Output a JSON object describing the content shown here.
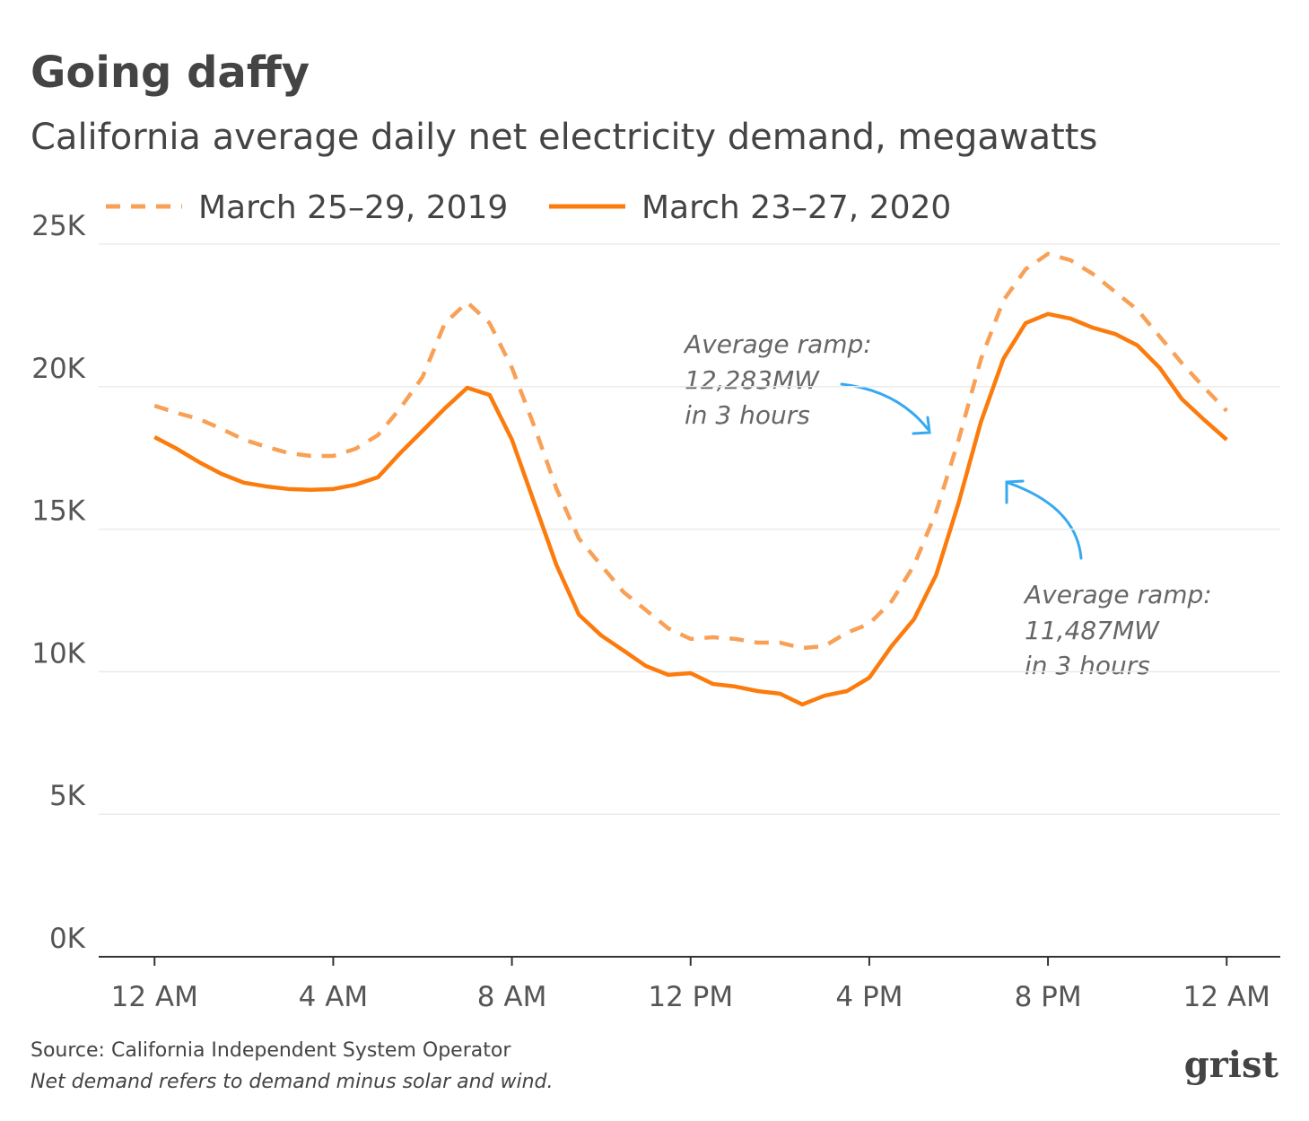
{
  "chart_data": {
    "type": "line",
    "title": "Going daffy",
    "subtitle": "California average daily net electricity demand, megawatts",
    "x": [
      0,
      0.5,
      1,
      1.5,
      2,
      2.5,
      3,
      3.5,
      4,
      4.5,
      5,
      5.5,
      6,
      6.5,
      7,
      7.5,
      8,
      8.5,
      9,
      9.5,
      10,
      10.5,
      11,
      11.5,
      12,
      12.5,
      13,
      13.5,
      14,
      14.5,
      15,
      15.5,
      16,
      16.5,
      17,
      17.5,
      18,
      18.5,
      19,
      19.5,
      20,
      20.5,
      21,
      21.5,
      22,
      22.5,
      23,
      23.5,
      24
    ],
    "series": [
      {
        "name": "March 25–29, 2019",
        "color": "#f9a057",
        "dashed": true,
        "values": [
          19330,
          19080,
          18860,
          18520,
          18140,
          17890,
          17670,
          17570,
          17570,
          17820,
          18300,
          19240,
          20340,
          22230,
          22960,
          22230,
          20660,
          18610,
          16410,
          14670,
          13730,
          12790,
          12160,
          11520,
          11150,
          11210,
          11150,
          11020,
          11020,
          10830,
          10900,
          11370,
          11680,
          12470,
          13730,
          15620,
          18140,
          20970,
          23020,
          24120,
          24660,
          24440,
          23960,
          23330,
          22700,
          21760,
          20820,
          19960,
          19150
        ]
      },
      {
        "name": "March 23–27, 2020",
        "color": "#fc7b0d",
        "dashed": false,
        "values": [
          18230,
          17820,
          17350,
          16940,
          16630,
          16500,
          16410,
          16380,
          16410,
          16560,
          16820,
          17670,
          18450,
          19240,
          19960,
          19710,
          18140,
          15930,
          13730,
          12000,
          11270,
          10740,
          10200,
          9890,
          9950,
          9570,
          9480,
          9320,
          9230,
          8850,
          9160,
          9320,
          9790,
          10900,
          11840,
          13410,
          15930,
          18770,
          20970,
          22230,
          22550,
          22390,
          22070,
          21850,
          21450,
          20660,
          19560,
          18830,
          18140
        ]
      }
    ],
    "xlim": [
      -1.25,
      25.2
    ],
    "xticks": [
      {
        "value": 0,
        "label": "12 AM"
      },
      {
        "value": 4,
        "label": "4 AM"
      },
      {
        "value": 8,
        "label": "8 AM"
      },
      {
        "value": 12,
        "label": "12 PM"
      },
      {
        "value": 16,
        "label": "4 PM"
      },
      {
        "value": 20,
        "label": "8 PM"
      },
      {
        "value": 24,
        "label": "12 AM"
      }
    ],
    "ylim": [
      0,
      25000
    ],
    "yticks": [
      {
        "value": 0,
        "label": "0K"
      },
      {
        "value": 5000,
        "label": "5K"
      },
      {
        "value": 10000,
        "label": "10K"
      },
      {
        "value": 15000,
        "label": "15K"
      },
      {
        "value": 20000,
        "label": "20K"
      },
      {
        "value": 25000,
        "label": "25K"
      }
    ],
    "grid": true,
    "annotations": [
      {
        "lines": [
          "Average ramp:",
          "12,283MW",
          "in 3 hours"
        ]
      },
      {
        "lines": [
          "Average ramp:",
          "11,487MW",
          "in 3 hours"
        ]
      }
    ],
    "source": "Source: California Independent System Operator",
    "note": "Net demand refers to demand minus solar and wind.",
    "brand": "grist"
  }
}
